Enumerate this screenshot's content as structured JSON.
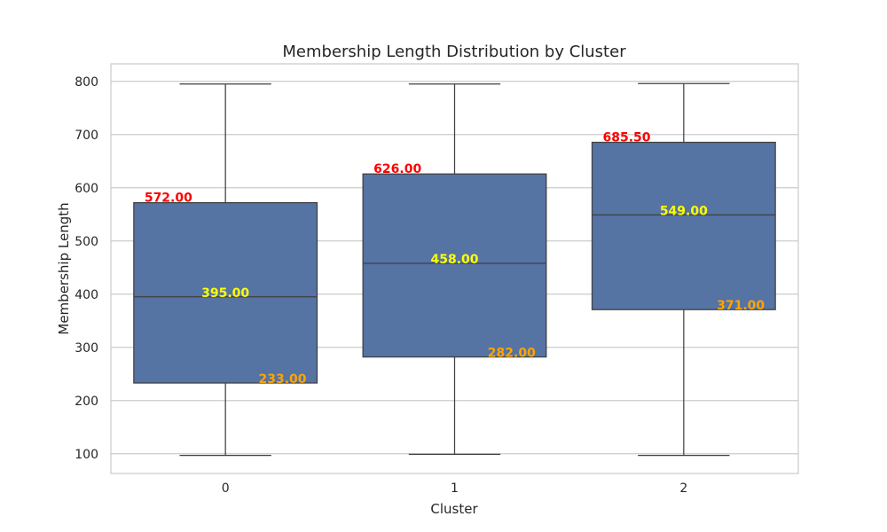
{
  "chart_data": {
    "type": "box",
    "title": "Membership Length Distribution by Cluster",
    "xlabel": "Cluster",
    "ylabel": "Membership Length",
    "categories": [
      "0",
      "1",
      "2"
    ],
    "ylim": [
      63,
      833
    ],
    "yticks": [
      100,
      200,
      300,
      400,
      500,
      600,
      700,
      800
    ],
    "grid": true,
    "box_color": "#5573a3",
    "line_color": "#404040",
    "annotation_colors": {
      "q3": "#ff0000",
      "median": "#ffff00",
      "q1": "#ffa500"
    },
    "boxes": [
      {
        "category": "0",
        "whisker_low": 97,
        "q1": 233,
        "median": 395,
        "q3": 572,
        "whisker_high": 795,
        "q1_label": "233.00",
        "median_label": "395.00",
        "q3_label": "572.00"
      },
      {
        "category": "1",
        "whisker_low": 99,
        "q1": 282,
        "median": 458,
        "q3": 626,
        "whisker_high": 795,
        "q1_label": "282.00",
        "median_label": "458.00",
        "q3_label": "626.00"
      },
      {
        "category": "2",
        "whisker_low": 97,
        "q1": 371,
        "median": 549,
        "q3": 685.5,
        "whisker_high": 796,
        "q1_label": "371.00",
        "median_label": "549.00",
        "q3_label": "685.50"
      }
    ]
  }
}
